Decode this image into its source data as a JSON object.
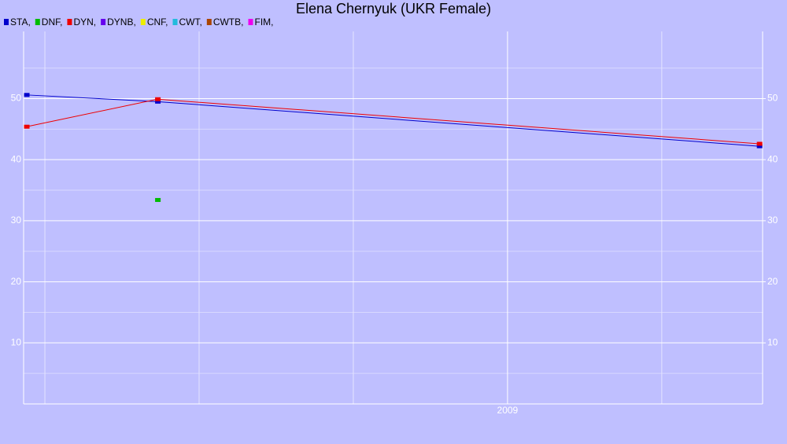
{
  "chart_data": {
    "type": "line",
    "title": "Elena Chernyuk (UKR Female)",
    "x": [
      2007.44,
      2007.865,
      2009.816
    ],
    "xlim": [
      2007.431,
      2009.827
    ],
    "xticks": [
      2009
    ],
    "xgrid": [
      2007.5,
      2008,
      2008.5,
      2009.5
    ],
    "ylim": [
      0,
      61
    ],
    "yticks": [
      10,
      20,
      30,
      40,
      50
    ],
    "yminor": [
      5,
      15,
      25,
      35,
      45,
      55
    ],
    "y2lim": [
      0,
      61
    ],
    "y2ticks": [
      10,
      20,
      30,
      40,
      50
    ],
    "grid": true,
    "series": [
      {
        "name": "STA,",
        "color": "#0000cc",
        "values": [
          50.6,
          49.5,
          42.2
        ]
      },
      {
        "name": "DNF,",
        "color": "#00bb00",
        "values": [
          null,
          33.4,
          null
        ]
      },
      {
        "name": "DYN,",
        "color": "#ee0000",
        "values": [
          45.4,
          49.9,
          42.6
        ]
      },
      {
        "name": "DYNB,",
        "color": "#6600ee",
        "values": [
          null,
          null,
          null
        ]
      },
      {
        "name": "CNF,",
        "color": "#eeee00",
        "values": [
          null,
          null,
          null
        ]
      },
      {
        "name": "CWT,",
        "color": "#22bbdd",
        "values": [
          null,
          null,
          null
        ]
      },
      {
        "name": "CWTB,",
        "color": "#aa4400",
        "values": [
          null,
          null,
          null
        ]
      },
      {
        "name": "FIM,",
        "color": "#ee00ee",
        "values": [
          null,
          null,
          null
        ]
      }
    ]
  }
}
